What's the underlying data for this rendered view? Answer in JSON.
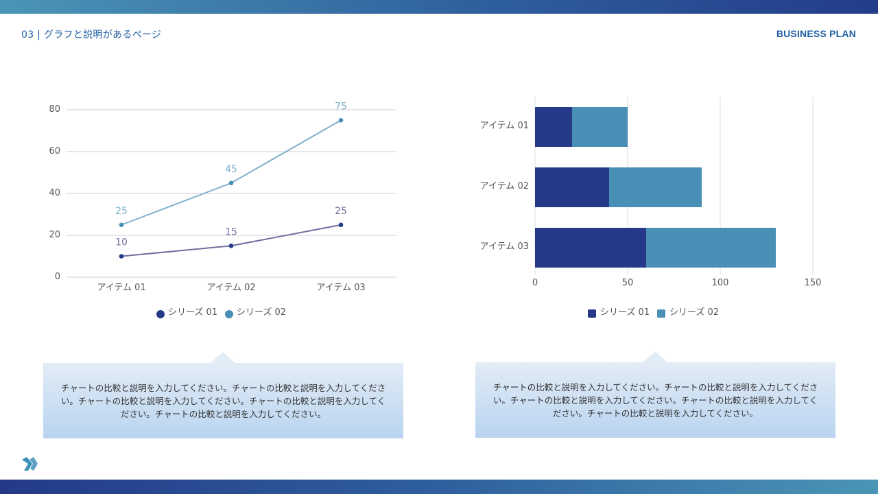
{
  "header": {
    "page_label": "03 | グラフと説明があるページ",
    "brand": "BUSINESS PLAN"
  },
  "colors": {
    "series1": "#243a88",
    "series2": "#4a8fb6",
    "series1_line": "#6e6fa0",
    "series2_line": "#7fb0cc",
    "grid": "#e4dbe8"
  },
  "chart_data": [
    {
      "type": "line",
      "categories": [
        "アイテム 01",
        "アイテム 02",
        "アイテム 03"
      ],
      "series": [
        {
          "name": "シリーズ 01",
          "values": [
            10,
            15,
            25
          ]
        },
        {
          "name": "シリーズ 02",
          "values": [
            25,
            45,
            75
          ]
        }
      ],
      "yticks": [
        "0",
        "20",
        "40",
        "60",
        "80"
      ],
      "ylim": [
        0,
        80
      ],
      "grid": true,
      "legend": "bottom"
    },
    {
      "type": "bar",
      "orientation": "horizontal",
      "stacked": true,
      "categories": [
        "アイテム 01",
        "アイテム 02",
        "アイテム 03"
      ],
      "series": [
        {
          "name": "シリーズ 01",
          "values": [
            20,
            40,
            60
          ]
        },
        {
          "name": "シリーズ 02",
          "values": [
            30,
            50,
            70
          ]
        }
      ],
      "xticks": [
        "0",
        "50",
        "100",
        "150"
      ],
      "xlim": [
        0,
        150
      ],
      "grid": true,
      "legend": "bottom"
    }
  ],
  "descriptions": [
    "チャートの比較と説明を入力してください。チャートの比較と説明を入力してください。チャートの比較と説明を入力してください。チャートの比較と説明を入力してください。チャートの比較と説明を入力してください。",
    "チャートの比較と説明を入力してください。チャートの比較と説明を入力してください。チャートの比較と説明を入力してください。チャートの比較と説明を入力してください。チャートの比較と説明を入力してください。"
  ]
}
